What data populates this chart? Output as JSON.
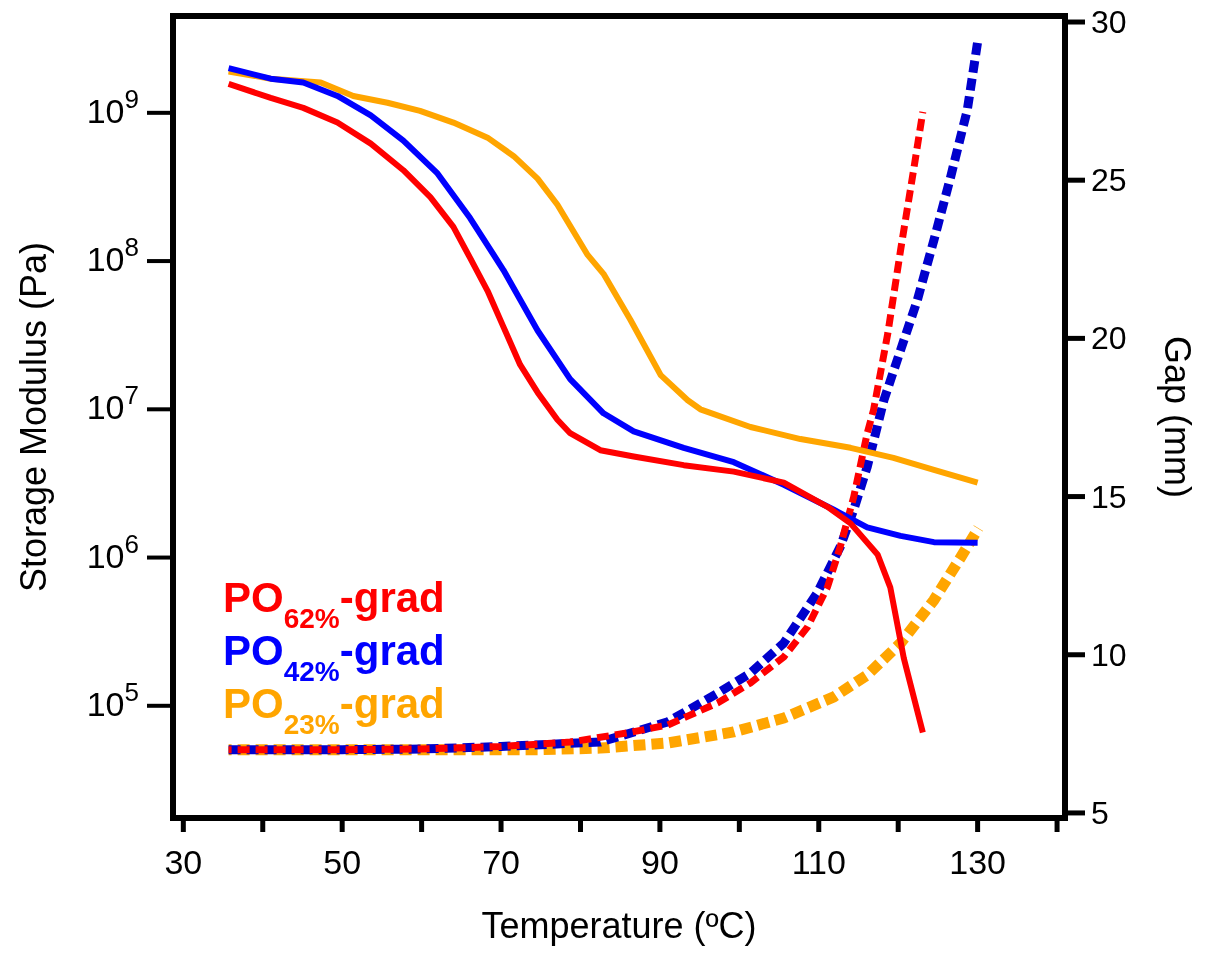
{
  "chart_data": {
    "type": "line",
    "xlabel": "Temperature (ºC)",
    "ylabel": "Storage Modulus (Pa)",
    "y2label": "Gap (mm)",
    "log": "y",
    "legend": "bottom left",
    "marker": "none",
    "xlim": [
      28.7,
      141
    ],
    "xticks": [
      30,
      {
        "value": 40,
        "label": null
      },
      50,
      {
        "value": 60,
        "label": null
      },
      70,
      {
        "value": 80,
        "label": null
      },
      90,
      {
        "value": 100,
        "label": null
      },
      110,
      {
        "value": 120,
        "label": null
      },
      130,
      {
        "value": 140,
        "label": null
      }
    ],
    "ylim": [
      17500,
      4500000000
    ],
    "yticks": [
      {
        "value": 100000,
        "label": "10$^{5}$"
      },
      {
        "value": 1000000,
        "label": "10$^{6}$"
      },
      {
        "value": 10000000,
        "label": "10$^{7}$"
      },
      {
        "value": 100000000,
        "label": "10$^{8}$"
      },
      {
        "value": 1000000000,
        "label": "10$^{9}$"
      }
    ],
    "y2lim": [
      4.84,
      30.19
    ],
    "y2ticks": [
      5,
      10,
      15,
      20,
      25,
      30
    ],
    "series": [
      {
        "name": "PO$_{62%}$-grad",
        "color": "#ff0000",
        "line_style": "solid",
        "x": [
          35.7,
          41,
          45.1,
          49.4,
          53.6,
          57.7,
          61.1,
          64,
          66.1,
          68.3,
          70.3,
          72.4,
          74.6,
          77.1,
          78.7,
          82.5,
          86.7,
          93,
          99.3,
          105.6,
          111.1,
          114,
          117.4,
          119,
          120.7,
          123.1
        ],
        "values": [
          1570000000,
          1260000000,
          1080000000,
          860000000,
          620000000,
          410000000,
          270000000,
          170000000,
          105000000,
          63000000,
          36000000,
          20000000,
          13000000,
          8500000,
          6900000,
          5300000,
          4800000,
          4200000,
          3800000,
          3200000,
          2200000,
          1700000,
          1050000,
          630000,
          210000,
          66000
        ]
      },
      {
        "name": "PO$_{42%}$-grad",
        "color": "#0000ff",
        "line_style": "solid",
        "x": [
          35.7,
          41,
          45.1,
          49.4,
          53.6,
          57.7,
          62,
          66.1,
          70.3,
          74.6,
          78.7,
          82.9,
          86.7,
          93,
          99.3,
          105.6,
          111.9,
          116.1,
          120.3,
          124.5,
          130
        ],
        "values": [
          2000000000,
          1700000000,
          1600000000,
          1300000000,
          960000000,
          650000000,
          390000000,
          195000000,
          87000000,
          34000000,
          16000000,
          9400000,
          7100000,
          5500000,
          4400000,
          3100000,
          2100000,
          1600000,
          1400000,
          1270000,
          1260000
        ]
      },
      {
        "name": "PO$_{23%}$-grad",
        "color": "#ffa500",
        "line_style": "solid",
        "x": [
          35.7,
          41,
          47.3,
          51.4,
          55.7,
          59.8,
          64,
          68.3,
          71.6,
          74.6,
          77.1,
          80.9,
          82.9,
          86.3,
          90.1,
          93.5,
          95.1,
          101.4,
          107.7,
          114,
          119.4,
          124.5,
          130
        ],
        "values": [
          1900000000,
          1700000000,
          1600000000,
          1300000000,
          1170000000,
          1030000000,
          860000000,
          680000000,
          510000000,
          360000000,
          240000000,
          110000000,
          82000000,
          40000000,
          17000000,
          11500000,
          10000000,
          7600000,
          6300000,
          5500000,
          4700000,
          3900000,
          3200000
        ]
      },
      {
        "color": "#ff0000",
        "axis": "y2",
        "line_style": "dashed",
        "x": [
          35.7,
          50,
          60,
          70,
          78.7,
          85.9,
          91,
          97.3,
          101.4,
          105.6,
          108.6,
          111.1,
          112.7,
          114.4,
          116.1,
          116.9,
          118.7,
          120.3,
          122,
          123.1
        ],
        "values": [
          7.0,
          7.0,
          7.02,
          7.1,
          7.24,
          7.53,
          7.78,
          8.48,
          9.11,
          9.93,
          10.88,
          12.14,
          13.41,
          14.99,
          17.0,
          17.74,
          20.17,
          22.79,
          25.42,
          27.16
        ]
      },
      {
        "color": "#0000cc",
        "axis": "y2",
        "line_style": "dashed",
        "x": [
          35.7,
          50,
          60,
          70,
          78.7,
          82.5,
          91,
          97.3,
          101.4,
          105.6,
          109.8,
          112.7,
          114.4,
          116.1,
          118.2,
          120.3,
          122.4,
          124.5,
          126.6,
          128.7,
          130
        ],
        "values": [
          7.0,
          7.0,
          7.02,
          7.1,
          7.2,
          7.24,
          7.88,
          8.79,
          9.42,
          10.37,
          11.95,
          13.41,
          14.58,
          15.94,
          18.05,
          19.63,
          21.2,
          23.11,
          25.1,
          27.22,
          29.37
        ]
      },
      {
        "color": "#ffa500",
        "axis": "y2",
        "line_style": "dashed",
        "x": [
          35.7,
          60,
          75,
          82.5,
          91,
          99.3,
          105.6,
          111.9,
          116.1,
          120.3,
          124.5,
          127.9,
          130.1
        ],
        "values": [
          7.0,
          7.0,
          7.0,
          7.05,
          7.21,
          7.56,
          8.0,
          8.67,
          9.36,
          10.37,
          11.73,
          13.09,
          14.0
        ]
      }
    ]
  }
}
